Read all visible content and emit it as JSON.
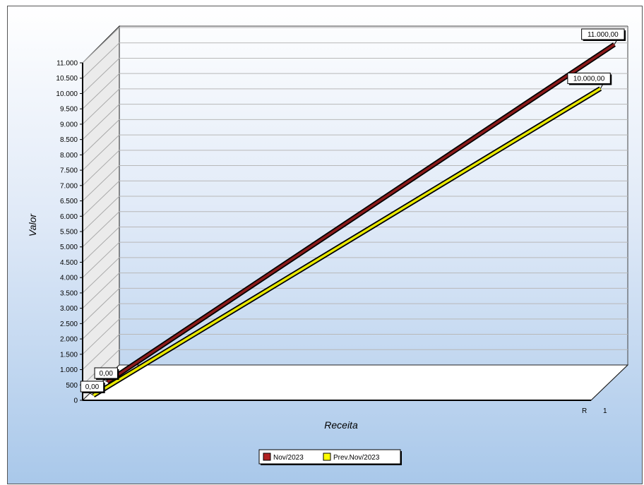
{
  "chart_data": {
    "type": "line",
    "title": "",
    "xlabel": "Receita",
    "ylabel": "Valor",
    "ylim": [
      0,
      11000
    ],
    "yticks": [
      0,
      500,
      1000,
      1500,
      2000,
      2500,
      3000,
      3500,
      4000,
      4500,
      5000,
      5500,
      6000,
      6500,
      7000,
      7500,
      8000,
      8500,
      9000,
      9500,
      10000,
      10500,
      11000
    ],
    "ytick_labels": [
      "0",
      "500",
      "1.000",
      "1.500",
      "2.000",
      "2.500",
      "3.000",
      "3.500",
      "4.000",
      "4.500",
      "5.000",
      "5.500",
      "6.000",
      "6.500",
      "7.000",
      "7.500",
      "8.000",
      "8.500",
      "9.000",
      "9.500",
      "10.000",
      "10.500",
      "11.000"
    ],
    "x_end_labels": [
      "R",
      "1"
    ],
    "grid": true,
    "legend_position": "bottom-center",
    "series": [
      {
        "name": "Nov/2023",
        "color": "#8b1a1a",
        "values": [
          0,
          11000
        ],
        "labels": [
          "0,00",
          "11.000,00"
        ]
      },
      {
        "name": "Prev.Nov/2023",
        "color": "#e8e800",
        "values": [
          0,
          10000
        ],
        "labels": [
          "0,00",
          "10.000,00"
        ]
      }
    ]
  }
}
